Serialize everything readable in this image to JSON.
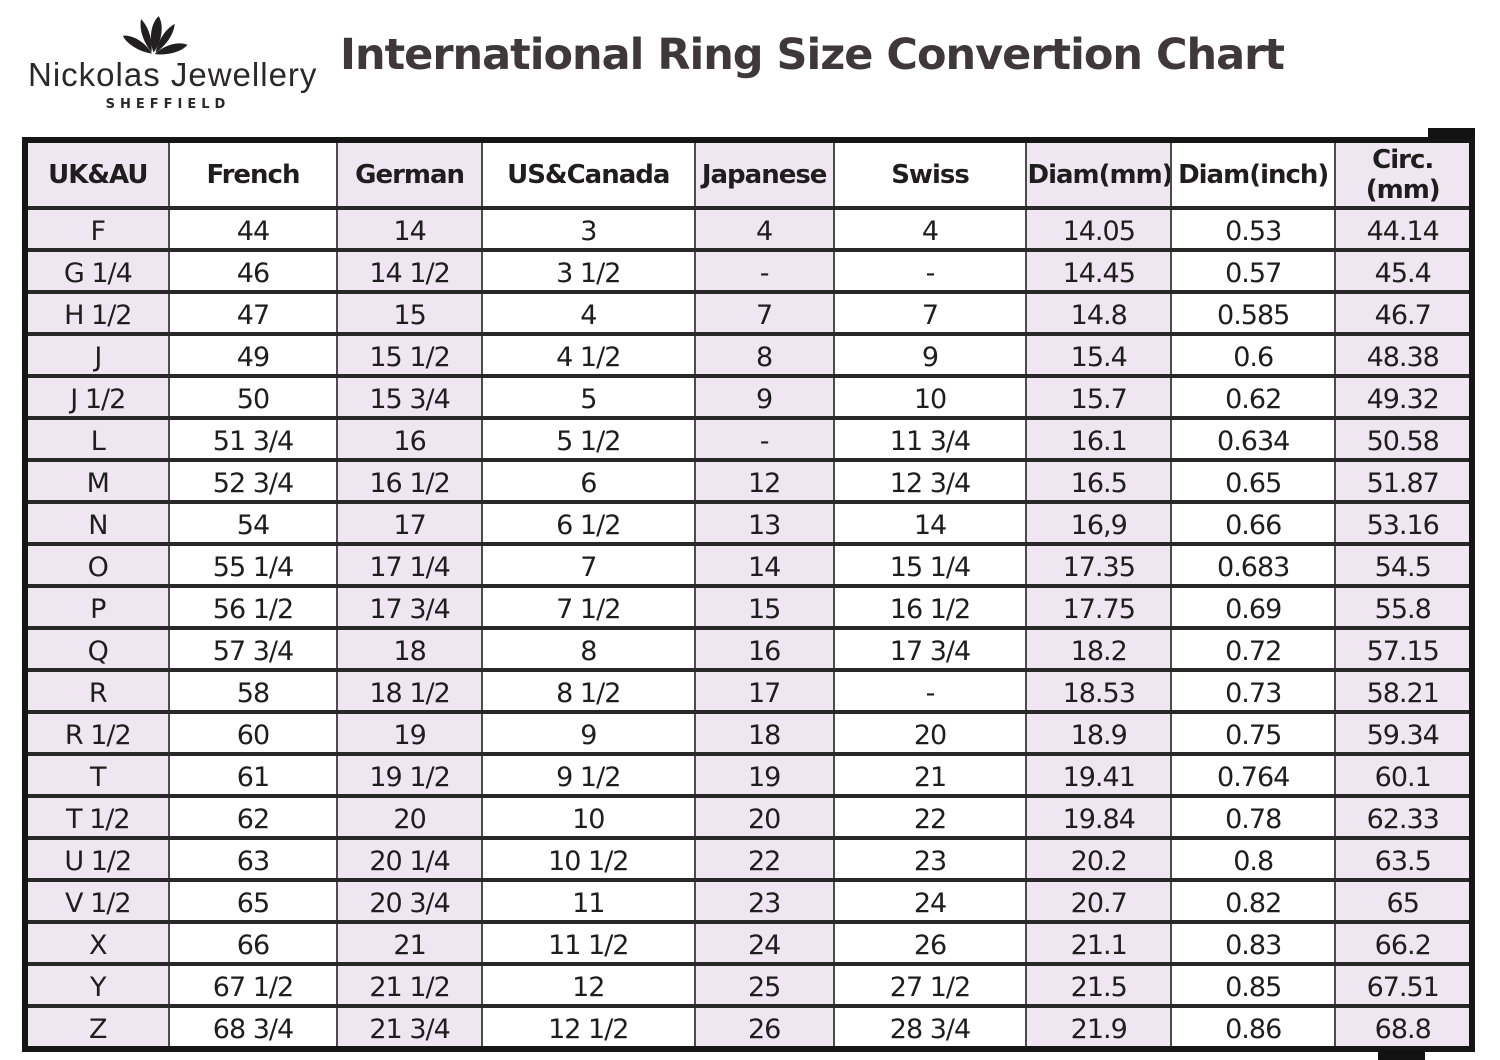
{
  "brand": {
    "name": "Nickolas Jewellery",
    "subtitle": "SHEFFIELD",
    "logo_icon": "lotus-flower-icon"
  },
  "title": "International Ring Size Convertion Chart",
  "colors": {
    "column_stripe": "#efe6f2",
    "table_border": "#161616",
    "title_text": "#3f383a",
    "cell_text": "#1f1d1d"
  },
  "chart_data": {
    "type": "table",
    "title": "International Ring Size Convertion Chart",
    "columns": [
      "UK&AU",
      "French",
      "German",
      "US&Canada",
      "Japanese",
      "Swiss",
      "Diam(mm)",
      "Diam(inch)",
      "Circ.(mm)"
    ],
    "rows": [
      [
        "F",
        "44",
        "14",
        "3",
        "4",
        "4",
        "14.05",
        "0.53",
        "44.14"
      ],
      [
        "G 1/4",
        "46",
        "14 1/2",
        "3 1/2",
        "-",
        "-",
        "14.45",
        "0.57",
        "45.4"
      ],
      [
        "H 1/2",
        "47",
        "15",
        "4",
        "7",
        "7",
        "14.8",
        "0.585",
        "46.7"
      ],
      [
        "J",
        "49",
        "15 1/2",
        "4 1/2",
        "8",
        "9",
        "15.4",
        "0.6",
        "48.38"
      ],
      [
        "J 1/2",
        "50",
        "15 3/4",
        "5",
        "9",
        "10",
        "15.7",
        "0.62",
        "49.32"
      ],
      [
        "L",
        "51 3/4",
        "16",
        "5 1/2",
        "-",
        "11 3/4",
        "16.1",
        "0.634",
        "50.58"
      ],
      [
        "M",
        "52 3/4",
        "16 1/2",
        "6",
        "12",
        "12 3/4",
        "16.5",
        "0.65",
        "51.87"
      ],
      [
        "N",
        "54",
        "17",
        "6 1/2",
        "13",
        "14",
        "16,9",
        "0.66",
        "53.16"
      ],
      [
        "O",
        "55 1/4",
        "17 1/4",
        "7",
        "14",
        "15 1/4",
        "17.35",
        "0.683",
        "54.5"
      ],
      [
        "P",
        "56 1/2",
        "17 3/4",
        "7 1/2",
        "15",
        "16 1/2",
        "17.75",
        "0.69",
        "55.8"
      ],
      [
        "Q",
        "57 3/4",
        "18",
        "8",
        "16",
        "17 3/4",
        "18.2",
        "0.72",
        "57.15"
      ],
      [
        "R",
        "58",
        "18 1/2",
        "8 1/2",
        "17",
        "-",
        "18.53",
        "0.73",
        "58.21"
      ],
      [
        "R 1/2",
        "60",
        "19",
        "9",
        "18",
        "20",
        "18.9",
        "0.75",
        "59.34"
      ],
      [
        "T",
        "61",
        "19 1/2",
        "9 1/2",
        "19",
        "21",
        "19.41",
        "0.764",
        "60.1"
      ],
      [
        "T 1/2",
        "62",
        "20",
        "10",
        "20",
        "22",
        "19.84",
        "0.78",
        "62.33"
      ],
      [
        "U 1/2",
        "63",
        "20 1/4",
        "10 1/2",
        "22",
        "23",
        "20.2",
        "0.8",
        "63.5"
      ],
      [
        "V 1/2",
        "65",
        "20 3/4",
        "11",
        "23",
        "24",
        "20.7",
        "0.82",
        "65"
      ],
      [
        "X",
        "66",
        "21",
        "11 1/2",
        "24",
        "26",
        "21.1",
        "0.83",
        "66.2"
      ],
      [
        "Y",
        "67 1/2",
        "21 1/2",
        "12",
        "25",
        "27 1/2",
        "21.5",
        "0.85",
        "67.51"
      ],
      [
        "Z",
        "68 3/4",
        "21 3/4",
        "12 1/2",
        "26",
        "28 3/4",
        "21.9",
        "0.86",
        "68.8"
      ]
    ],
    "legend": "columns alternate lavender/white striping starting with lavender on UK&AU"
  }
}
